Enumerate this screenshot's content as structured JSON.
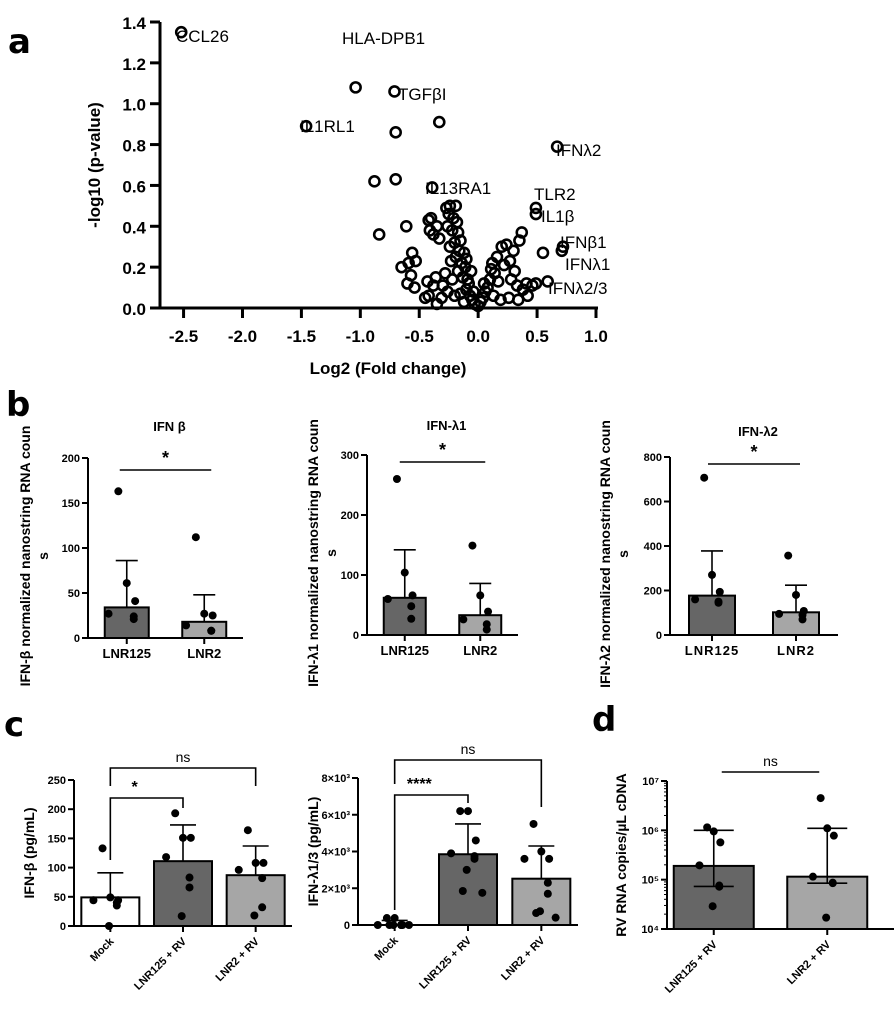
{
  "panel_labels": {
    "a": "a",
    "b": "b",
    "c": "c",
    "d": "d"
  },
  "chart_data": [
    {
      "id": "a",
      "type": "scatter",
      "title": "",
      "xlabel": "Log2 (Fold change)",
      "ylabel": "-log10 (p-value)",
      "xlim": [
        -2.7,
        1.0
      ],
      "ylim": [
        0,
        1.4
      ],
      "xticks": [
        "-2.5",
        "-2.0",
        "-1.5",
        "-1.0",
        "-0.5",
        "0.0",
        "0.5",
        "1.0"
      ],
      "xtick_values": [
        -2.5,
        -2.0,
        -1.5,
        -1.0,
        -0.5,
        0.0,
        0.5,
        1.0
      ],
      "yticks": [
        "0.0",
        "0.2",
        "0.4",
        "0.6",
        "0.8",
        "1.0",
        "1.2",
        "1.4"
      ],
      "ytick_values": [
        0.0,
        0.2,
        0.4,
        0.6,
        0.8,
        1.0,
        1.2,
        1.4
      ],
      "marker": "open-circle",
      "labeled_points": [
        {
          "label": "CCL26",
          "x": -2.52,
          "y": 1.35
        },
        {
          "label": "HLA-DPB1",
          "x": -1.04,
          "y": 1.08
        },
        {
          "label": "TGFβI",
          "x": -0.71,
          "y": 1.06
        },
        {
          "label": "IL1RL1",
          "x": -1.46,
          "y": 0.89
        },
        {
          "label": "IFNλ2",
          "x": 0.67,
          "y": 0.79
        },
        {
          "label": "IL13RA1",
          "x": -0.39,
          "y": 0.59
        },
        {
          "label": "TLR2",
          "x": 0.49,
          "y": 0.49
        },
        {
          "label": "IL1β",
          "x": 0.49,
          "y": 0.46
        },
        {
          "label": "IFNβ1",
          "x": 0.72,
          "y": 0.3
        },
        {
          "label": "IFNλ1",
          "x": 0.71,
          "y": 0.28
        },
        {
          "label": "IFNλ2/3",
          "x": 0.59,
          "y": 0.13
        }
      ],
      "points": [
        {
          "x": -0.7,
          "y": 0.86
        },
        {
          "x": -0.33,
          "y": 0.91
        },
        {
          "x": -0.88,
          "y": 0.62
        },
        {
          "x": -0.7,
          "y": 0.63
        },
        {
          "x": -0.84,
          "y": 0.36
        },
        {
          "x": -0.61,
          "y": 0.4
        },
        {
          "x": -0.56,
          "y": 0.27
        },
        {
          "x": -0.53,
          "y": 0.23
        },
        {
          "x": -0.59,
          "y": 0.22
        },
        {
          "x": -0.65,
          "y": 0.2
        },
        {
          "x": -0.57,
          "y": 0.16
        },
        {
          "x": -0.6,
          "y": 0.12
        },
        {
          "x": -0.54,
          "y": 0.1
        },
        {
          "x": -0.45,
          "y": 0.05
        },
        {
          "x": -0.42,
          "y": 0.06
        },
        {
          "x": -0.43,
          "y": 0.13
        },
        {
          "x": -0.38,
          "y": 0.11
        },
        {
          "x": -0.36,
          "y": 0.15
        },
        {
          "x": -0.35,
          "y": 0.02
        },
        {
          "x": -0.42,
          "y": 0.43
        },
        {
          "x": -0.4,
          "y": 0.44
        },
        {
          "x": -0.41,
          "y": 0.38
        },
        {
          "x": -0.38,
          "y": 0.36
        },
        {
          "x": -0.35,
          "y": 0.4
        },
        {
          "x": -0.33,
          "y": 0.34
        },
        {
          "x": -0.27,
          "y": 0.49
        },
        {
          "x": -0.24,
          "y": 0.5
        },
        {
          "x": -0.19,
          "y": 0.5
        },
        {
          "x": -0.25,
          "y": 0.46
        },
        {
          "x": -0.21,
          "y": 0.44
        },
        {
          "x": -0.18,
          "y": 0.42
        },
        {
          "x": -0.26,
          "y": 0.4
        },
        {
          "x": -0.22,
          "y": 0.38
        },
        {
          "x": -0.17,
          "y": 0.37
        },
        {
          "x": -0.15,
          "y": 0.33
        },
        {
          "x": -0.2,
          "y": 0.32
        },
        {
          "x": -0.24,
          "y": 0.3
        },
        {
          "x": -0.16,
          "y": 0.28
        },
        {
          "x": -0.12,
          "y": 0.27
        },
        {
          "x": -0.19,
          "y": 0.25
        },
        {
          "x": -0.14,
          "y": 0.22
        },
        {
          "x": -0.11,
          "y": 0.2
        },
        {
          "x": -0.17,
          "y": 0.18
        },
        {
          "x": -0.13,
          "y": 0.15
        },
        {
          "x": -0.09,
          "y": 0.14
        },
        {
          "x": -0.22,
          "y": 0.14
        },
        {
          "x": -0.28,
          "y": 0.17
        },
        {
          "x": -0.3,
          "y": 0.11
        },
        {
          "x": -0.26,
          "y": 0.08
        },
        {
          "x": -0.31,
          "y": 0.05
        },
        {
          "x": -0.2,
          "y": 0.06
        },
        {
          "x": -0.15,
          "y": 0.07
        },
        {
          "x": -0.1,
          "y": 0.09
        },
        {
          "x": -0.07,
          "y": 0.06
        },
        {
          "x": -0.05,
          "y": 0.04
        },
        {
          "x": -0.12,
          "y": 0.03
        },
        {
          "x": -0.03,
          "y": 0.02
        },
        {
          "x": 0.0,
          "y": 0.01
        },
        {
          "x": -0.08,
          "y": 0.12
        },
        {
          "x": -0.04,
          "y": 0.08
        },
        {
          "x": -0.06,
          "y": 0.18
        },
        {
          "x": 0.02,
          "y": 0.03
        },
        {
          "x": 0.04,
          "y": 0.05
        },
        {
          "x": 0.06,
          "y": 0.08
        },
        {
          "x": 0.05,
          "y": 0.12
        },
        {
          "x": 0.08,
          "y": 0.1
        },
        {
          "x": 0.1,
          "y": 0.14
        },
        {
          "x": 0.11,
          "y": 0.19
        },
        {
          "x": 0.14,
          "y": 0.17
        },
        {
          "x": 0.12,
          "y": 0.22
        },
        {
          "x": 0.16,
          "y": 0.25
        },
        {
          "x": 0.2,
          "y": 0.3
        },
        {
          "x": 0.24,
          "y": 0.31
        },
        {
          "x": 0.17,
          "y": 0.13
        },
        {
          "x": 0.22,
          "y": 0.21
        },
        {
          "x": 0.27,
          "y": 0.23
        },
        {
          "x": 0.3,
          "y": 0.28
        },
        {
          "x": 0.31,
          "y": 0.18
        },
        {
          "x": 0.35,
          "y": 0.33
        },
        {
          "x": 0.37,
          "y": 0.37
        },
        {
          "x": 0.33,
          "y": 0.11
        },
        {
          "x": 0.38,
          "y": 0.09
        },
        {
          "x": 0.41,
          "y": 0.12
        },
        {
          "x": 0.42,
          "y": 0.06
        },
        {
          "x": 0.46,
          "y": 0.11
        },
        {
          "x": 0.49,
          "y": 0.12
        },
        {
          "x": 0.26,
          "y": 0.05
        },
        {
          "x": 0.19,
          "y": 0.04
        },
        {
          "x": 0.13,
          "y": 0.06
        },
        {
          "x": 0.34,
          "y": 0.04
        },
        {
          "x": 0.28,
          "y": 0.14
        },
        {
          "x": 0.55,
          "y": 0.27
        },
        {
          "x": -0.1,
          "y": 0.24
        },
        {
          "x": -0.23,
          "y": 0.23
        }
      ]
    },
    {
      "id": "b1",
      "type": "bar",
      "title": "IFN β",
      "ylabel": "IFN-β normalized nanostring RNA counts",
      "categories": [
        "LNR125",
        "LNR2"
      ],
      "values": [
        34,
        18
      ],
      "error_upper": [
        86,
        48
      ],
      "ylim": [
        0,
        200
      ],
      "yticks": [
        "0",
        "50",
        "100",
        "150",
        "200"
      ],
      "ytick_values": [
        0,
        50,
        100,
        150,
        200
      ],
      "points": [
        [
          163,
          61,
          41,
          27,
          24,
          21
        ],
        [
          112,
          27,
          25,
          14,
          8,
          8
        ]
      ],
      "significance": [
        {
          "from": 0,
          "to": 1,
          "label": "*"
        }
      ]
    },
    {
      "id": "b2",
      "type": "bar",
      "title": "IFN-λ1",
      "ylabel": "IFN-λ1 normalized nanostring RNA counts",
      "categories": [
        "LNR125",
        "LNR2"
      ],
      "values": [
        62,
        33
      ],
      "error_upper": [
        142,
        86
      ],
      "ylim": [
        0,
        300
      ],
      "yticks": [
        "0",
        "100",
        "200",
        "300"
      ],
      "ytick_values": [
        0,
        100,
        200,
        300
      ],
      "points": [
        [
          260,
          104,
          66,
          60,
          48,
          27
        ],
        [
          149,
          66,
          39,
          26,
          18,
          9
        ]
      ],
      "significance": [
        {
          "from": 0,
          "to": 1,
          "label": "*"
        }
      ]
    },
    {
      "id": "b3",
      "type": "bar",
      "title": "IFN-λ2",
      "ylabel": "IFN-λ2 normalized nanostring RNA counts",
      "categories": [
        "LNR125",
        "LNR2"
      ],
      "values": [
        177,
        102
      ],
      "error_upper": [
        378,
        224
      ],
      "ylim": [
        0,
        800
      ],
      "yticks": [
        "0",
        "200",
        "400",
        "600",
        "800"
      ],
      "ytick_values": [
        0,
        200,
        400,
        600,
        800
      ],
      "points": [
        [
          707,
          270,
          194,
          160,
          150,
          145
        ],
        [
          357,
          180,
          108,
          95,
          90,
          70
        ]
      ],
      "significance": [
        {
          "from": 0,
          "to": 1,
          "label": "*"
        }
      ]
    },
    {
      "id": "c1",
      "type": "bar",
      "title": "",
      "ylabel": "IFN-β (pg/mL)",
      "categories": [
        "Mock",
        "LNR125 + RV",
        "LNR2 + RV"
      ],
      "values": [
        49,
        111,
        87
      ],
      "error_upper": [
        91,
        173,
        137
      ],
      "ylim": [
        0,
        250
      ],
      "yticks": [
        "0",
        "50",
        "100",
        "150",
        "200",
        "250"
      ],
      "ytick_values": [
        0,
        50,
        100,
        150,
        200,
        250
      ],
      "points": [
        [
          133,
          49,
          44,
          44,
          40,
          35,
          0
        ],
        [
          193,
          151,
          151,
          118,
          83,
          66,
          17
        ],
        [
          164,
          108,
          108,
          96,
          82,
          32,
          18
        ]
      ],
      "significance": [
        {
          "from": 0,
          "to": 1,
          "label": "*"
        },
        {
          "from": 0,
          "to": 2,
          "label": "ns"
        }
      ]
    },
    {
      "id": "c2",
      "type": "bar",
      "title": "",
      "ylabel": "IFN-λ1/3 (pg/mL)",
      "categories": [
        "Mock",
        "LNR125 + RV",
        "LNR2 + RV"
      ],
      "values": [
        0,
        3850,
        2520
      ],
      "error_upper": [
        250,
        5500,
        4300
      ],
      "ylim": [
        0,
        8000
      ],
      "yticks": [
        "0",
        "2×10³",
        "4×10³",
        "6×10³",
        "8×10³"
      ],
      "ytick_values": [
        0,
        2000,
        4000,
        6000,
        8000
      ],
      "points": [
        [
          380,
          380,
          0,
          0,
          0,
          0,
          0,
          0,
          0
        ],
        [
          6200,
          6200,
          4600,
          3900,
          3750,
          3600,
          3000,
          1850,
          1750
        ],
        [
          5500,
          4000,
          3600,
          3600,
          2300,
          1700,
          750,
          650,
          400
        ]
      ],
      "significance": [
        {
          "from": 0,
          "to": 1,
          "label": "****"
        },
        {
          "from": 0,
          "to": 2,
          "label": "ns"
        }
      ]
    },
    {
      "id": "d",
      "type": "bar",
      "title": "",
      "ylabel": "RV RNA copies/µL cDNA",
      "categories": [
        "LNR125 + RV",
        "LNR2 + RV"
      ],
      "scale": "log",
      "values": [
        190000,
        115000
      ],
      "error_upper": [
        1000000,
        1100000
      ],
      "error_lower": [
        73000,
        85000
      ],
      "ylim": [
        10000,
        10000000
      ],
      "yticks": [
        "10⁴",
        "10⁵",
        "10⁶",
        "10⁷"
      ],
      "ytick_values": [
        10000,
        100000,
        1000000,
        10000000
      ],
      "points": [
        [
          1150000,
          950000,
          570000,
          195000,
          76000,
          72000,
          29000
        ],
        [
          4500000,
          1100000,
          780000,
          115000,
          87000,
          85000,
          17000
        ]
      ],
      "significance": [
        {
          "from": 0,
          "to": 1,
          "label": "ns"
        }
      ]
    }
  ],
  "colors": {
    "bar_dark": "#666666",
    "bar_light": "#a6a6a6",
    "bar_white": "#ffffff",
    "ink": "#000000"
  }
}
